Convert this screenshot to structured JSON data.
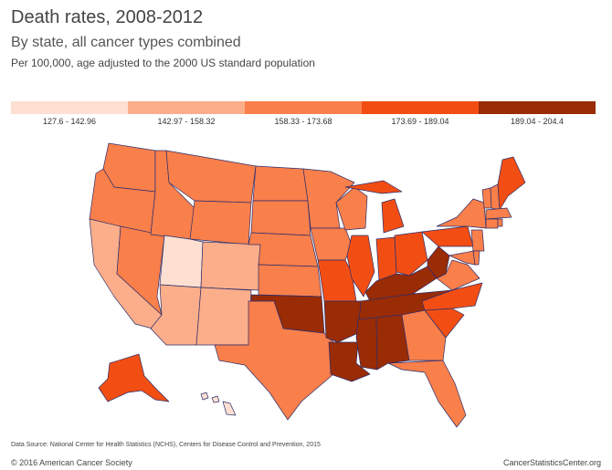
{
  "header": {
    "title": "Death rates, 2008-2012",
    "subtitle": "By state, all cancer types combined",
    "note": "Per 100,000, age adjusted to the 2000 US standard population"
  },
  "legend": [
    {
      "label": "127.6 - 142.96",
      "color": "#fde0d2"
    },
    {
      "label": "142.97 - 158.32",
      "color": "#fcae8a"
    },
    {
      "label": "158.33 - 173.68",
      "color": "#f97f4b"
    },
    {
      "label": "173.69 - 189.04",
      "color": "#f24e14"
    },
    {
      "label": "189.04 - 204.4",
      "color": "#992b05"
    }
  ],
  "footer": {
    "source": "Data Source: National Center for Health Statistics (NCHS), Centers for Disease Control and Prevention, 2015",
    "copyright": "© 2016 American Cancer Society",
    "site": "CancerStatisticsCenter.org"
  }
}
